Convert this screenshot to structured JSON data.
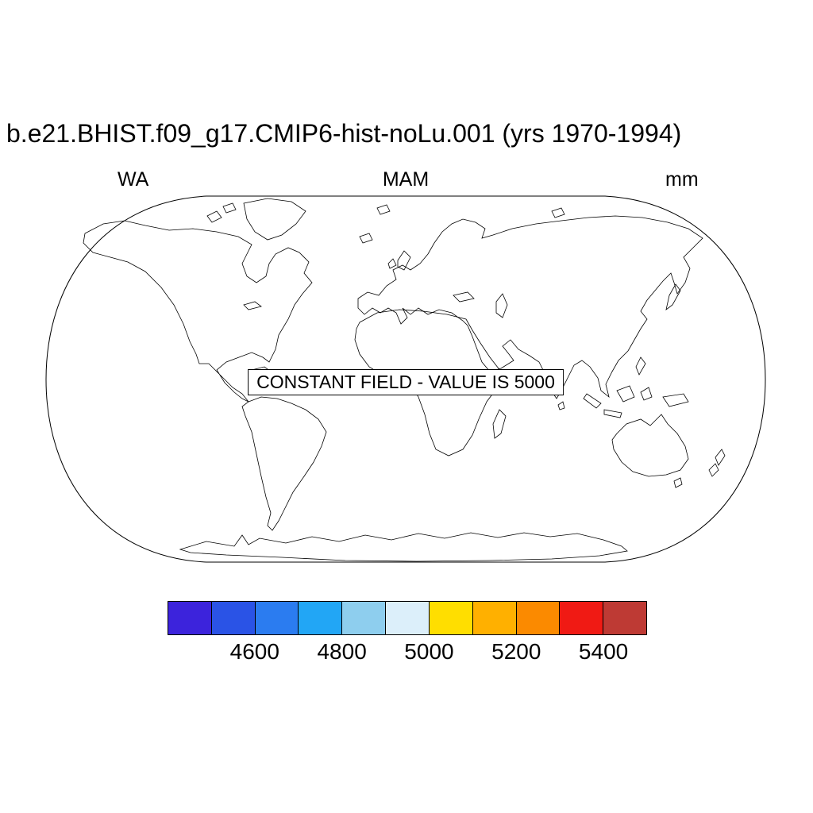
{
  "title": "b.e21.BHIST.f09_g17.CMIP6-hist-noLu.001 (yrs 1970-1994)",
  "labels": {
    "left": "WA",
    "center": "MAM",
    "right": "mm"
  },
  "map": {
    "annotation": "CONSTANT FIELD - VALUE IS 5000"
  },
  "colorbar": {
    "colors": [
      "#3C23DC",
      "#2A53E6",
      "#2B7CF0",
      "#22A6F5",
      "#8ECEEE",
      "#DCEFFA",
      "#FFDE00",
      "#FFB000",
      "#FB8A00",
      "#F01A14",
      "#BE3A34"
    ],
    "ticks": [
      "4600",
      "4800",
      "5000",
      "5200",
      "5400"
    ]
  },
  "chart_data": {
    "type": "heatmap",
    "title": "b.e21.BHIST.f09_g17.CMIP6-hist-noLu.001 (yrs 1970-1994)",
    "subtitle_left": "WA",
    "subtitle_center": "MAM",
    "units": "mm",
    "field": "constant",
    "constant_value": 5000,
    "annotation": "CONSTANT FIELD - VALUE IS 5000",
    "layout": "world map, robinson-style projection outline, horizontal labelbar below",
    "colorbar_levels": [
      4500,
      4600,
      4700,
      4800,
      4900,
      5000,
      5100,
      5200,
      5300,
      5400
    ],
    "colorbar_labeled_levels": [
      4600,
      4800,
      5000,
      5200,
      5400
    ],
    "colorbar_colors": [
      "#3C23DC",
      "#2A53E6",
      "#2B7CF0",
      "#22A6F5",
      "#8ECEEE",
      "#DCEFFA",
      "#FFDE00",
      "#FFB000",
      "#FB8A00",
      "#F01A14",
      "#BE3A34"
    ]
  }
}
